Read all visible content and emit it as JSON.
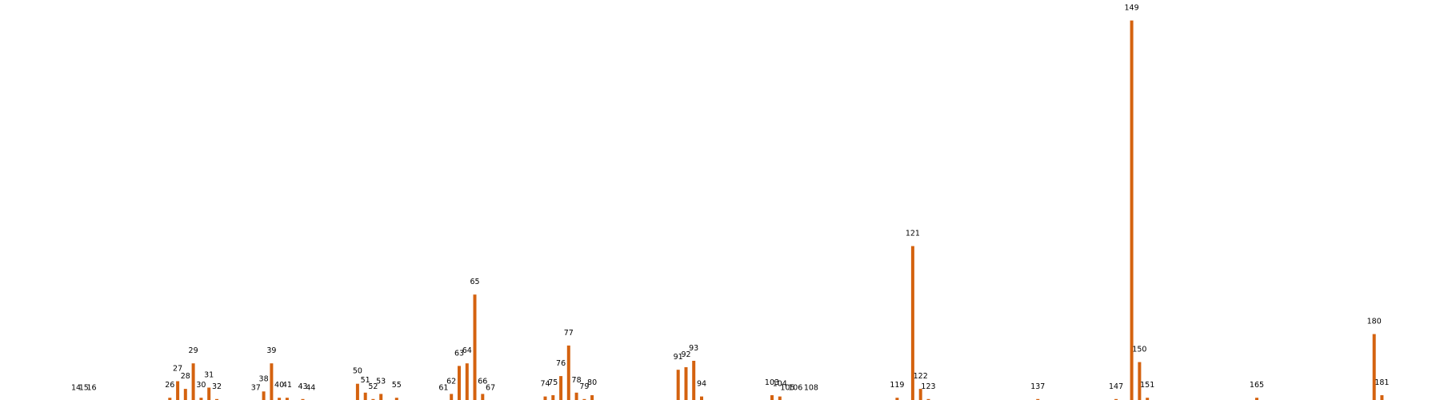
{
  "colors": {
    "bar": "#d4620f",
    "background": "#ffffff"
  },
  "chart_data": {
    "type": "bar",
    "title": "",
    "xlabel": "",
    "ylabel": "",
    "axes_visible": false,
    "grid": false,
    "ylim": [
      0,
      30
    ],
    "categories": [
      "14",
      "15",
      "16",
      "26",
      "27",
      "28",
      "29",
      "30",
      "31",
      "32",
      "37",
      "38",
      "39",
      "40",
      "41",
      "43",
      "44",
      "50",
      "51",
      "52",
      "53",
      "55",
      "61",
      "62",
      "63",
      "64",
      "65",
      "66",
      "67",
      "74",
      "75",
      "76",
      "77",
      "78",
      "79",
      "80",
      "91",
      "92",
      "93",
      "94",
      "103",
      "104",
      "105",
      "106",
      "108",
      "119",
      "121",
      "122",
      "123",
      "137",
      "147",
      "149",
      "150",
      "151",
      "165",
      "180",
      "181"
    ],
    "values": [
      0.1,
      0.1,
      0.1,
      0.3,
      1.6,
      1.0,
      3.0,
      0.3,
      1.1,
      0.2,
      0.1,
      0.8,
      3.0,
      0.3,
      0.3,
      0.2,
      0.1,
      1.4,
      0.7,
      0.2,
      0.6,
      0.3,
      0.1,
      0.6,
      2.8,
      3.0,
      8.4,
      0.6,
      0.1,
      0.4,
      0.5,
      2.0,
      4.4,
      0.7,
      0.2,
      0.5,
      2.5,
      2.7,
      3.2,
      0.4,
      0.5,
      0.4,
      0.1,
      0.1,
      0.1,
      0.3,
      12.2,
      1.0,
      0.2,
      0.2,
      0.2,
      29.9,
      3.1,
      0.3,
      0.3,
      5.3,
      0.5
    ]
  }
}
